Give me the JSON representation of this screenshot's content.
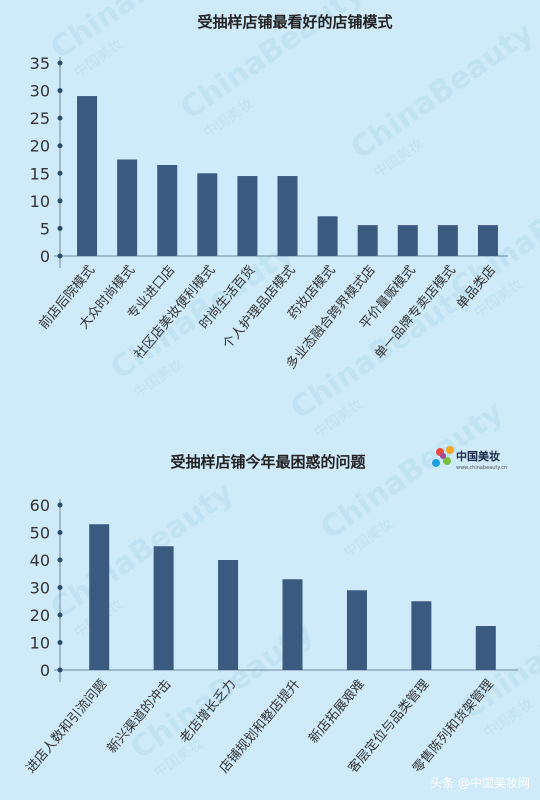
{
  "colors": {
    "background": "#cfeaf8",
    "bar": "#3a5a80",
    "axis": "#6f8aa5",
    "text": "#333333",
    "watermark": "#b7dcef"
  },
  "watermark": {
    "text": "ChinaBeauty",
    "subtext": "中国美妆"
  },
  "logo": {
    "name": "中国美妆",
    "url": "www.chinabeauty.cn",
    "icon": "colorful-star-icon"
  },
  "footer": {
    "text": "头条 @中国美妆网"
  },
  "chart_data": [
    {
      "type": "bar",
      "title": "受抽样店铺最看好的店铺模式",
      "categories": [
        "前店后院模式",
        "大众时尚模式",
        "专业进口店",
        "社区店美妆便利模式",
        "时尚生活百货",
        "个人护理品店模式",
        "药妆店模式",
        "多业态融合跨界模式店",
        "平价量贩模式",
        "单一品牌专卖店模式",
        "单品类店"
      ],
      "values": [
        29,
        17.5,
        16.5,
        15,
        14.5,
        14.5,
        7.2,
        5.6,
        5.6,
        5.6,
        5.6
      ],
      "ylim": [
        0,
        35
      ],
      "yticks": [
        "0",
        "5",
        "10",
        "15",
        "20",
        "25",
        "30",
        "35"
      ],
      "grid": false,
      "xlabel": "",
      "ylabel": ""
    },
    {
      "type": "bar",
      "title": "受抽样店铺今年最困惑的问题",
      "categories": [
        "进店人数和引流问题",
        "新兴渠道的冲击",
        "老店增长乏力",
        "店铺规划和整店提升",
        "新店拓展艰难",
        "客层定位与品类管理",
        "零售陈列和货架管理"
      ],
      "values": [
        53,
        45,
        40,
        33,
        29,
        25,
        16
      ],
      "ylim": [
        0,
        60
      ],
      "yticks": [
        "0",
        "10",
        "20",
        "30",
        "40",
        "50",
        "60"
      ],
      "grid": false,
      "xlabel": "",
      "ylabel": ""
    }
  ]
}
